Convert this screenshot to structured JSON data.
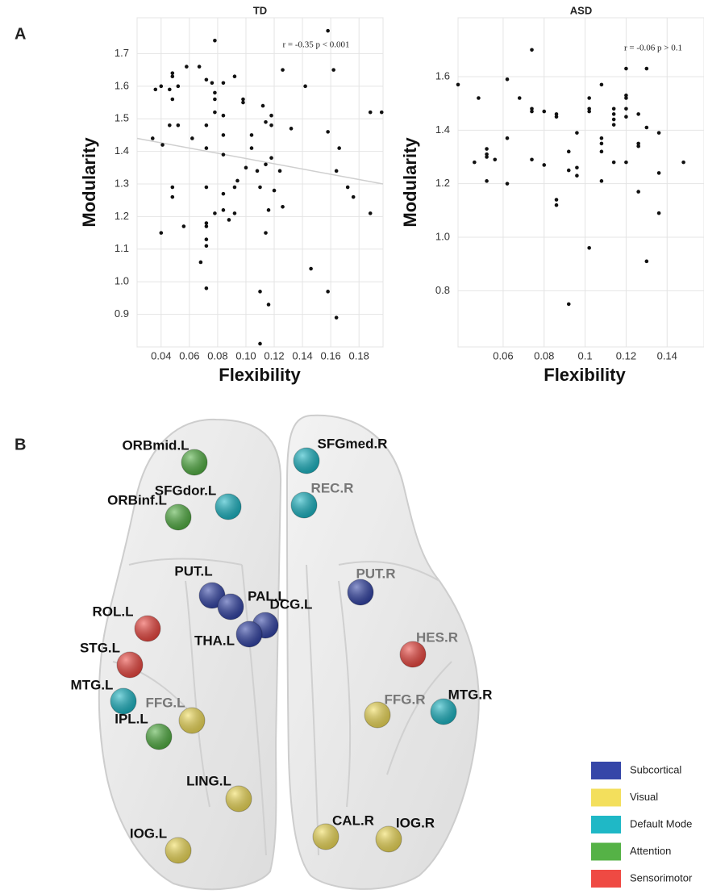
{
  "panels": [
    "A",
    "B"
  ],
  "chart_data": [
    {
      "type": "scatter",
      "title": "TD",
      "x_label": "Flexibility",
      "y_label": "Modularity",
      "annotation": "r = -0.35 p < 0.001",
      "color": "#111111",
      "grid": true,
      "xlim": [
        0.023,
        0.197
      ],
      "ylim": [
        0.8,
        1.81
      ],
      "xticks": [
        0.04,
        0.06,
        0.08,
        {
          "value": 0.1,
          "label": "0.10"
        },
        0.12,
        0.14,
        0.16,
        0.18
      ],
      "yticks": [
        0.9,
        {
          "value": 1,
          "label": "1.0"
        },
        1.1,
        1.2,
        1.3,
        1.4,
        1.5,
        1.6,
        1.7
      ],
      "trend": {
        "x": [
          0.023,
          0.197
        ],
        "y": [
          1.44,
          1.3
        ],
        "color": "#cfcfcf"
      },
      "x": [
        0.036,
        0.04,
        0.046,
        0.048,
        0.048,
        0.048,
        0.052,
        0.058,
        0.067,
        0.072,
        0.076,
        0.078,
        0.078,
        0.078,
        0.084,
        0.092,
        0.098,
        0.098,
        0.078,
        0.084,
        0.112,
        0.114,
        0.118,
        0.118,
        0.126,
        0.132,
        0.142,
        0.158,
        0.158,
        0.162,
        0.166,
        0.188,
        0.196,
        0.034,
        0.041,
        0.046,
        0.052,
        0.062,
        0.072,
        0.072,
        0.084,
        0.084,
        0.104,
        0.104,
        0.108,
        0.114,
        0.118,
        0.124,
        0.164,
        0.048,
        0.048,
        0.072,
        0.084,
        0.092,
        0.094,
        0.1,
        0.11,
        0.116,
        0.12,
        0.126,
        0.172,
        0.176,
        0.04,
        0.056,
        0.072,
        0.072,
        0.072,
        0.072,
        0.078,
        0.084,
        0.088,
        0.092,
        0.114,
        0.068,
        0.072,
        0.11,
        0.116,
        0.146,
        0.158,
        0.164,
        0.11,
        0.188
      ],
      "y": [
        1.59,
        1.6,
        1.59,
        1.64,
        1.63,
        1.56,
        1.6,
        1.66,
        1.66,
        1.62,
        1.61,
        1.74,
        1.58,
        1.56,
        1.61,
        1.63,
        1.55,
        1.56,
        1.52,
        1.51,
        1.54,
        1.49,
        1.51,
        1.48,
        1.65,
        1.47,
        1.6,
        1.77,
        1.46,
        1.65,
        1.41,
        1.52,
        1.52,
        1.44,
        1.42,
        1.48,
        1.48,
        1.44,
        1.48,
        1.41,
        1.39,
        1.45,
        1.45,
        1.41,
        1.34,
        1.36,
        1.38,
        1.34,
        1.34,
        1.29,
        1.26,
        1.29,
        1.27,
        1.29,
        1.31,
        1.35,
        1.29,
        1.22,
        1.28,
        1.23,
        1.29,
        1.26,
        1.15,
        1.17,
        1.18,
        1.17,
        1.13,
        1.11,
        1.21,
        1.22,
        1.19,
        1.21,
        1.15,
        1.06,
        0.98,
        0.97,
        0.93,
        1.04,
        0.97,
        0.89,
        0.81,
        1.21
      ]
    },
    {
      "type": "scatter",
      "title": "ASD",
      "x_label": "Flexibility",
      "y_label": "Modularity",
      "annotation": "r = -0.06 p > 0.1",
      "color": "#111111",
      "grid": true,
      "xlim": [
        0.038,
        0.158
      ],
      "ylim": [
        0.59,
        1.82
      ],
      "xticks": [
        0.06,
        0.08,
        0.1,
        0.12,
        0.14
      ],
      "yticks": [
        0.8,
        {
          "value": 1,
          "label": "1.0"
        },
        1.2,
        1.4,
        1.6
      ],
      "x": [
        0.038,
        0.048,
        0.046,
        0.052,
        0.052,
        0.052,
        0.052,
        0.056,
        0.062,
        0.062,
        0.062,
        0.068,
        0.074,
        0.074,
        0.074,
        0.074,
        0.08,
        0.08,
        0.086,
        0.086,
        0.086,
        0.086,
        0.092,
        0.092,
        0.092,
        0.096,
        0.096,
        0.096,
        0.102,
        0.102,
        0.102,
        0.102,
        0.108,
        0.108,
        0.108,
        0.108,
        0.108,
        0.114,
        0.114,
        0.114,
        0.114,
        0.114,
        0.12,
        0.12,
        0.12,
        0.12,
        0.12,
        0.12,
        0.126,
        0.126,
        0.126,
        0.126,
        0.13,
        0.13,
        0.13,
        0.136,
        0.136,
        0.136,
        0.148
      ],
      "y": [
        1.57,
        1.52,
        1.28,
        1.33,
        1.31,
        1.3,
        1.21,
        1.29,
        1.59,
        1.37,
        1.2,
        1.52,
        1.7,
        1.48,
        1.47,
        1.29,
        1.47,
        1.27,
        1.46,
        1.45,
        1.14,
        1.12,
        1.32,
        1.25,
        0.75,
        1.39,
        1.26,
        1.23,
        1.52,
        1.48,
        1.47,
        0.96,
        1.57,
        1.37,
        1.35,
        1.32,
        1.21,
        1.48,
        1.46,
        1.44,
        1.42,
        1.28,
        1.63,
        1.53,
        1.52,
        1.48,
        1.45,
        1.28,
        1.46,
        1.35,
        1.34,
        1.17,
        1.63,
        1.41,
        0.91,
        1.39,
        1.24,
        1.09,
        1.28
      ]
    }
  ],
  "brain": {
    "legend": [
      {
        "label": "Subcortical",
        "color": "#3546a8"
      },
      {
        "label": "Visual",
        "color": "#f3df5c"
      },
      {
        "label": "Default Mode",
        "color": "#1fb8c6"
      },
      {
        "label": "Attention",
        "color": "#55b246"
      },
      {
        "label": "Sensorimotor",
        "color": "#ef4a43"
      }
    ],
    "nodes": [
      {
        "label": "ORBmid.L",
        "group": 3
      },
      {
        "label": "SFGdor.L",
        "group": 2
      },
      {
        "label": "ORBinf.L",
        "group": 3
      },
      {
        "label": "SFGmed.R",
        "group": 2
      },
      {
        "label": "REC.R",
        "group": 2
      },
      {
        "label": "PUT.L",
        "group": 0
      },
      {
        "label": "PAL.L",
        "group": 0
      },
      {
        "label": "PUT.R",
        "group": 0
      },
      {
        "label": "ROL.L",
        "group": 4
      },
      {
        "label": "DCG.L",
        "group": 0
      },
      {
        "label": "THA.L",
        "group": 0
      },
      {
        "label": "HES.R",
        "group": 4
      },
      {
        "label": "STG.L",
        "group": 4
      },
      {
        "label": "MTG.L",
        "group": 2
      },
      {
        "label": "FFG.L",
        "group": 1
      },
      {
        "label": "IPL.L",
        "group": 3
      },
      {
        "label": "FFG.R",
        "group": 1
      },
      {
        "label": "MTG.R",
        "group": 2
      },
      {
        "label": "LING.L",
        "group": 1
      },
      {
        "label": "CAL.R",
        "group": 1
      },
      {
        "label": "IOG.L",
        "group": 1
      },
      {
        "label": "IOG.R",
        "group": 1
      }
    ]
  }
}
